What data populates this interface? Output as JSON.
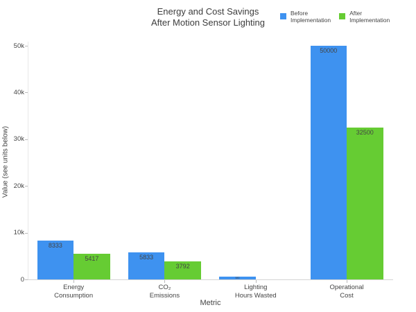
{
  "chart_data": {
    "type": "bar",
    "title_lines": [
      "Energy and Cost Savings",
      "After Motion Sensor Lighting"
    ],
    "xlabel": "Metric",
    "ylabel": "Value (see units below)",
    "ylim": [
      0,
      52500
    ],
    "grid": "off",
    "legend_position": "top-right-horizontal",
    "background": "#ffffff",
    "axis_text_color": "#444444",
    "yticks": [
      {
        "value": 0,
        "label": "0"
      },
      {
        "value": 10000,
        "label": "10k"
      },
      {
        "value": 20000,
        "label": "20k"
      },
      {
        "value": 30000,
        "label": "30k"
      },
      {
        "value": 40000,
        "label": "40k"
      },
      {
        "value": 50000,
        "label": "50k"
      }
    ],
    "categories": [
      {
        "key": "energy-consumption",
        "lines": [
          "Energy",
          "Consumption"
        ]
      },
      {
        "key": "co2-emissions",
        "lines": [
          "CO₂",
          "Emissions"
        ]
      },
      {
        "key": "lighting-hours-wasted",
        "lines": [
          "Lighting",
          "Hours Wasted"
        ]
      },
      {
        "key": "operational-cost",
        "lines": [
          "Operational",
          "Cost"
        ]
      }
    ],
    "series": [
      {
        "key": "before",
        "name": "Before Implementation",
        "legend_lines": [
          "Before",
          "Implementation"
        ],
        "color": "#3E92F0",
        "values": [
          8333,
          5833,
          583,
          50000
        ],
        "bar_labels": [
          "8333",
          "5833",
          "583",
          "50000"
        ]
      },
      {
        "key": "after",
        "name": "After Implementation",
        "legend_lines": [
          "After",
          "Implementation"
        ],
        "color": "#66CC33",
        "values": [
          5417,
          3792,
          0,
          32500
        ],
        "bar_labels": [
          "5417",
          "3792",
          "",
          "32500"
        ]
      }
    ]
  }
}
